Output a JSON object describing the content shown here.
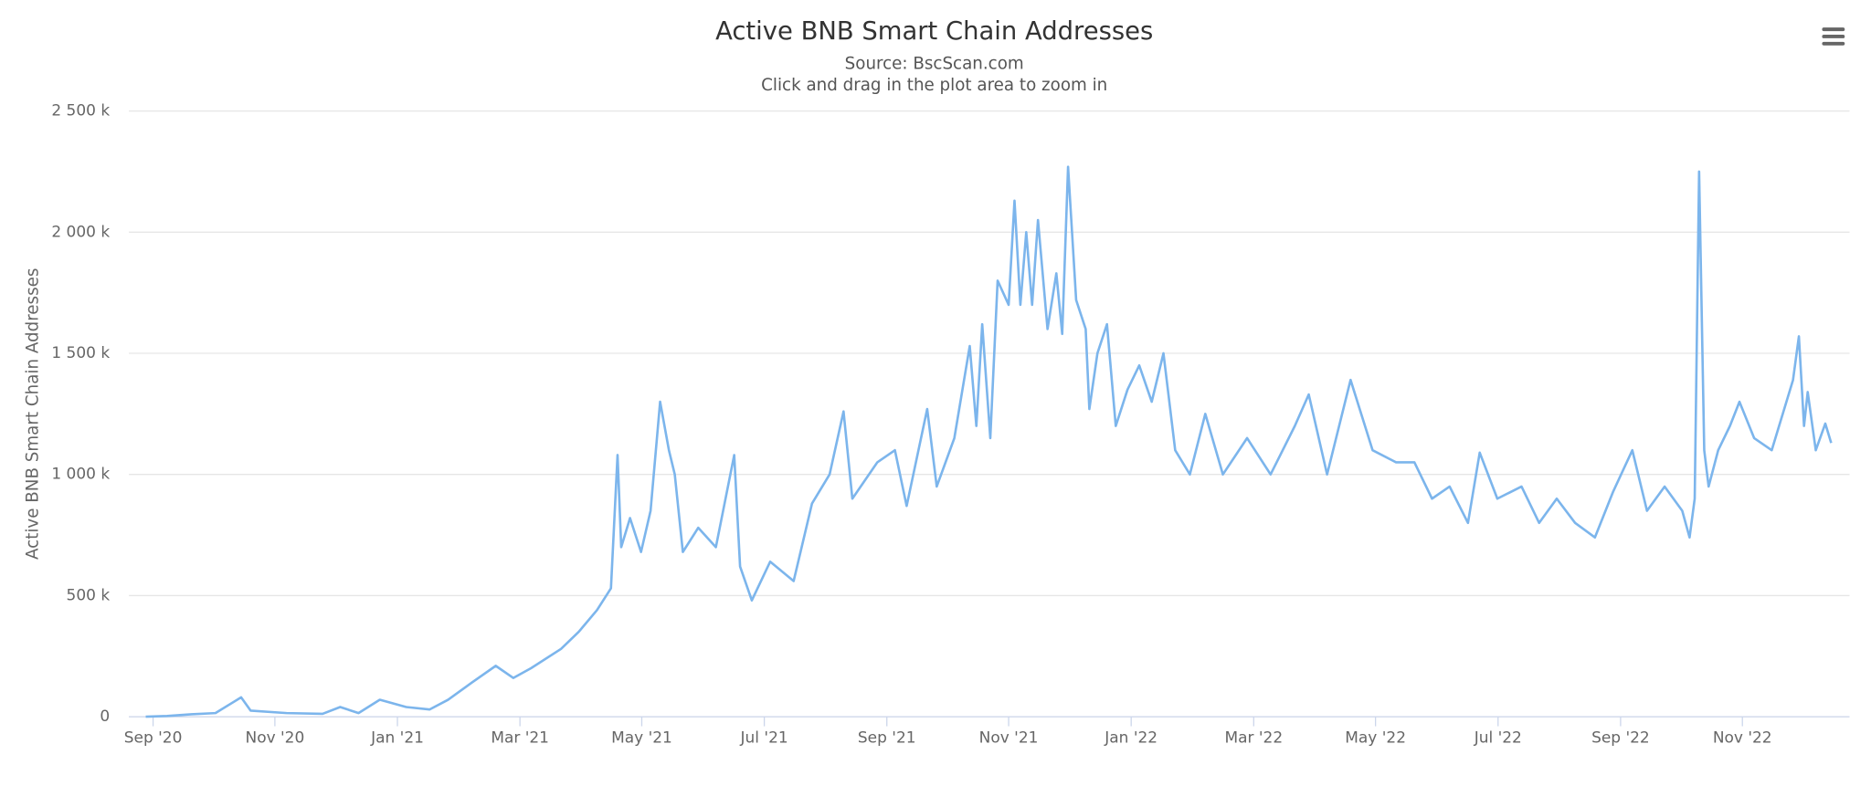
{
  "chart_data": {
    "type": "line",
    "title": "Active BNB Smart Chain Addresses",
    "subtitle": "Source: BscScan.com",
    "annotation": "Click and drag in the plot area to zoom in",
    "y_label": "Active BNB Smart Chain Addresses",
    "grid": true,
    "xlim": [
      2020.634,
      2022.979
    ],
    "xticks": [
      {
        "value": 2020.667,
        "label": "Sep '20"
      },
      {
        "value": 2020.833,
        "label": "Nov '20"
      },
      {
        "value": 2021.0,
        "label": "Jan '21"
      },
      {
        "value": 2021.167,
        "label": "Mar '21"
      },
      {
        "value": 2021.333,
        "label": "May '21"
      },
      {
        "value": 2021.5,
        "label": "Jul '21"
      },
      {
        "value": 2021.667,
        "label": "Sep '21"
      },
      {
        "value": 2021.833,
        "label": "Nov '21"
      },
      {
        "value": 2022.0,
        "label": "Jan '22"
      },
      {
        "value": 2022.167,
        "label": "Mar '22"
      },
      {
        "value": 2022.333,
        "label": "May '22"
      },
      {
        "value": 2022.5,
        "label": "Jul '22"
      },
      {
        "value": 2022.667,
        "label": "Sep '22"
      },
      {
        "value": 2022.833,
        "label": "Nov '22"
      }
    ],
    "ylim": [
      0,
      2500
    ],
    "yticks": [
      0,
      {
        "value": 500,
        "label": "500 k"
      },
      {
        "value": 1000,
        "label": "1 000 k"
      },
      {
        "value": 1500,
        "label": "1 500 k"
      },
      {
        "value": 2000,
        "label": "2 000 k"
      },
      {
        "value": 2500,
        "label": "2 500 k"
      }
    ],
    "x": [
      2020.657,
      2020.686,
      2020.719,
      2020.752,
      2020.787,
      2020.8,
      2020.849,
      2020.898,
      2020.922,
      2020.947,
      2020.976,
      2021.012,
      2021.044,
      2021.069,
      2021.101,
      2021.134,
      2021.158,
      2021.182,
      2021.223,
      2021.247,
      2021.272,
      2021.291,
      2021.3,
      2021.305,
      2021.317,
      2021.332,
      2021.345,
      2021.358,
      2021.37,
      2021.378,
      2021.389,
      2021.41,
      2021.434,
      2021.459,
      2021.467,
      2021.483,
      2021.508,
      2021.54,
      2021.565,
      2021.589,
      2021.608,
      2021.62,
      2021.654,
      2021.678,
      2021.694,
      2021.722,
      2021.735,
      2021.759,
      2021.78,
      2021.789,
      2021.797,
      2021.808,
      2021.818,
      2021.833,
      2021.841,
      2021.849,
      2021.857,
      2021.865,
      2021.873,
      2021.886,
      2021.898,
      2021.906,
      2021.914,
      2021.925,
      2021.938,
      2021.943,
      2021.954,
      2021.967,
      2021.979,
      2021.995,
      2022.011,
      2022.028,
      2022.044,
      2022.06,
      2022.08,
      2022.101,
      2022.125,
      2022.158,
      2022.19,
      2022.223,
      2022.242,
      2022.267,
      2022.299,
      2022.329,
      2022.361,
      2022.386,
      2022.41,
      2022.434,
      2022.459,
      2022.475,
      2022.499,
      2022.532,
      2022.556,
      2022.58,
      2022.605,
      2022.632,
      2022.657,
      2022.683,
      2022.703,
      2022.727,
      2022.751,
      2022.761,
      2022.768,
      2022.774,
      2022.781,
      2022.787,
      2022.8,
      2022.816,
      2022.829,
      2022.849,
      2022.873,
      2022.893,
      2022.902,
      2022.91,
      2022.917,
      2022.922,
      2022.933,
      2022.946,
      2022.954
    ],
    "series": [
      {
        "name": "Active BNB Smart Chain Addresses",
        "color": "#7cb5ec",
        "values": [
          0,
          3,
          10,
          15,
          80,
          25,
          15,
          12,
          40,
          15,
          70,
          40,
          30,
          70,
          140,
          210,
          160,
          200,
          280,
          350,
          440,
          530,
          1080,
          700,
          820,
          680,
          850,
          1300,
          1100,
          1000,
          680,
          780,
          700,
          1080,
          620,
          480,
          640,
          560,
          880,
          1000,
          1260,
          900,
          1050,
          1100,
          870,
          1270,
          950,
          1150,
          1530,
          1200,
          1620,
          1150,
          1800,
          1700,
          2130,
          1700,
          2000,
          1700,
          2050,
          1600,
          1830,
          1580,
          2270,
          1720,
          1600,
          1270,
          1500,
          1620,
          1200,
          1350,
          1450,
          1300,
          1500,
          1100,
          1000,
          1250,
          1000,
          1150,
          1000,
          1200,
          1330,
          1000,
          1390,
          1100,
          1050,
          1050,
          900,
          950,
          800,
          1090,
          900,
          950,
          800,
          900,
          800,
          740,
          930,
          1100,
          850,
          950,
          850,
          740,
          900,
          2250,
          1100,
          950,
          1100,
          1200,
          1300,
          1150,
          1100,
          1300,
          1390,
          1570,
          1200,
          1340,
          1100,
          1210,
          1130
        ]
      }
    ]
  }
}
